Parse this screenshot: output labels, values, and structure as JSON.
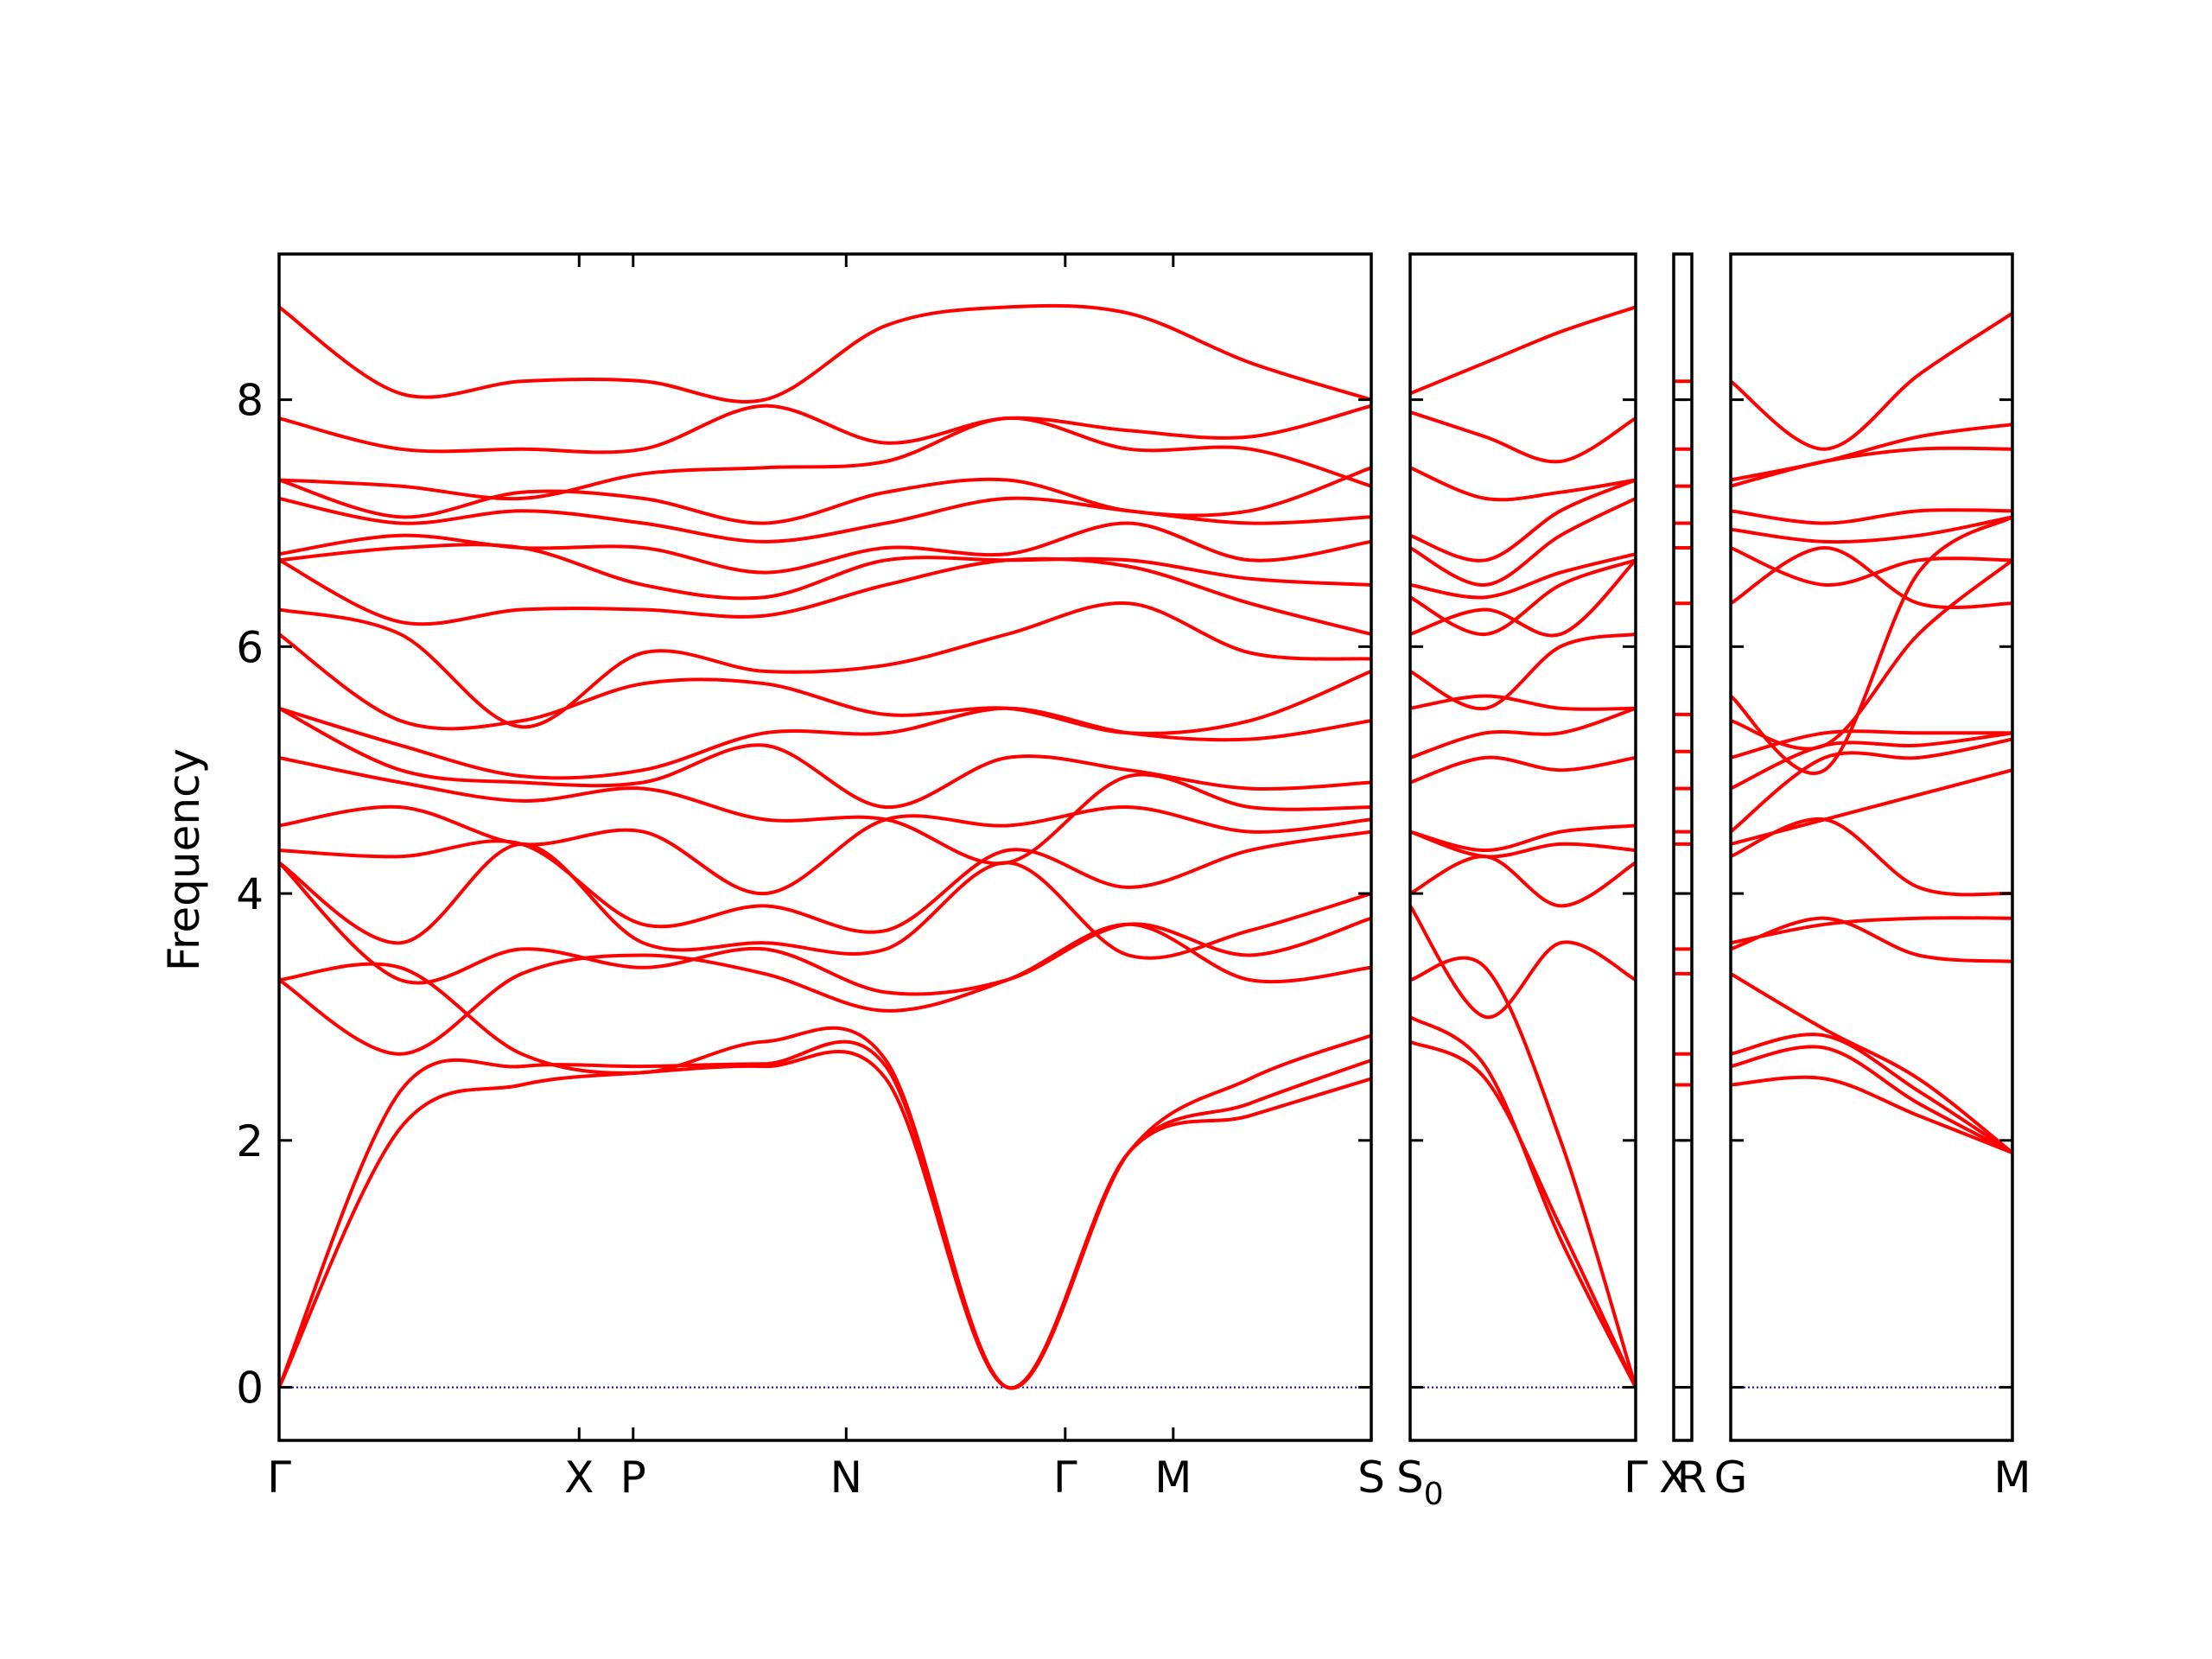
{
  "chart_data": {
    "type": "line",
    "ylabel": "Frequency",
    "ylim": [
      -0.43,
      9.18
    ],
    "yticks": [
      0,
      2,
      4,
      6,
      8
    ],
    "ytick_labels": [
      "0",
      "2",
      "4",
      "6",
      "8"
    ],
    "grid": false,
    "line_color": "#ff0000",
    "zero_line_color": "#0000cc",
    "panels": [
      {
        "segments": [
          {
            "from": "Γ",
            "to": "X",
            "length": 1.0
          },
          {
            "from": "X",
            "to": "P",
            "length": 0.18
          },
          {
            "from": "P",
            "to": "N",
            "length": 0.71
          },
          {
            "from": "N",
            "to": "Γ",
            "length": 0.73
          },
          {
            "from": "Γ",
            "to": "M",
            "length": 0.36
          },
          {
            "from": "M",
            "to": "S",
            "length": 0.66
          }
        ],
        "tick_labels": [
          "Γ",
          "X",
          "P",
          "N",
          "Γ",
          "M",
          "S"
        ],
        "series": [
          {
            "y": [
              0,
              2.1,
              2.45,
              2.55,
              2.6,
              2.5,
              0,
              1.9,
              2.2,
              2.5
            ]
          },
          {
            "y": [
              0,
              2.4,
              2.6,
              2.6,
              2.62,
              2.6,
              0,
              1.9,
              2.3,
              2.65
            ]
          },
          {
            "y": [
              3.3,
              3.4,
              2.7,
              2.55,
              2.8,
              2.65,
              0,
              1.9,
              2.5,
              2.85
            ]
          },
          {
            "y": [
              3.3,
              2.7,
              3.35,
              3.5,
              3.35,
              3.05,
              3.3,
              3.75,
              3.3,
              3.4
            ]
          },
          {
            "y": [
              4.25,
              3.3,
              3.55,
              3.4,
              3.55,
              3.2,
              3.3,
              3.75,
              3.5,
              3.8
            ]
          },
          {
            "y": [
              4.25,
              3.6,
              4.4,
              3.6,
              3.6,
              3.55,
              4.25,
              3.5,
              3.7,
              4.0
            ]
          },
          {
            "y": [
              4.35,
              4.3,
              4.4,
              3.75,
              3.9,
              3.7,
              4.35,
              4.05,
              4.35,
              4.5
            ]
          },
          {
            "y": [
              4.55,
              4.7,
              4.4,
              4.5,
              4.0,
              4.6,
              4.55,
              4.7,
              4.5,
              4.6
            ]
          },
          {
            "y": [
              5.1,
              4.9,
              4.75,
              4.85,
              4.6,
              4.6,
              4.25,
              4.95,
              4.7,
              4.7
            ]
          },
          {
            "y": [
              5.5,
              5.0,
              4.9,
              4.9,
              5.2,
              4.7,
              5.1,
              5.0,
              4.85,
              4.9
            ]
          },
          {
            "y": [
              5.5,
              5.2,
              4.95,
              5.0,
              5.3,
              5.3,
              5.5,
              5.3,
              5.25,
              5.4
            ]
          },
          {
            "y": [
              6.1,
              5.4,
              5.4,
              5.7,
              5.7,
              5.45,
              5.5,
              5.3,
              5.4,
              5.8
            ]
          },
          {
            "y": [
              6.3,
              6.1,
              5.35,
              5.95,
              5.8,
              5.85,
              6.1,
              6.35,
              5.95,
              5.9
            ]
          },
          {
            "y": [
              6.7,
              6.2,
              6.3,
              6.3,
              6.25,
              6.5,
              6.7,
              6.65,
              6.35,
              6.1
            ]
          },
          {
            "y": [
              6.7,
              6.8,
              6.8,
              6.5,
              6.4,
              6.7,
              6.7,
              6.7,
              6.55,
              6.5
            ]
          },
          {
            "y": [
              6.75,
              6.9,
              6.8,
              6.8,
              6.6,
              6.8,
              6.75,
              7.0,
              6.7,
              6.85
            ]
          },
          {
            "y": [
              7.2,
              7.0,
              7.1,
              7.0,
              6.85,
              7.0,
              7.2,
              7.1,
              7.0,
              7.05
            ]
          },
          {
            "y": [
              7.35,
              7.05,
              7.25,
              7.2,
              7.0,
              7.25,
              7.35,
              7.1,
              7.1,
              7.45
            ]
          },
          {
            "y": [
              7.35,
              7.3,
              7.2,
              7.4,
              7.45,
              7.5,
              7.85,
              7.6,
              7.6,
              7.3
            ]
          },
          {
            "y": [
              7.85,
              7.6,
              7.6,
              7.6,
              7.95,
              7.65,
              7.85,
              7.75,
              7.7,
              7.95
            ]
          },
          {
            "y": [
              8.75,
              8.05,
              8.15,
              8.15,
              8.0,
              8.6,
              8.75,
              8.7,
              8.3,
              8.0
            ]
          }
        ]
      },
      {
        "segments": [
          {
            "from": "S0",
            "to": "Γ",
            "length": 1.0
          }
        ],
        "tick_labels": [
          "S0",
          "Γ"
        ],
        "series": [
          {
            "y": [
              2.8,
              2.5,
              1.3,
              0
            ]
          },
          {
            "y": [
              3.0,
              2.6,
              1.2,
              0
            ]
          },
          {
            "y": [
              3.3,
              3.4,
              2.0,
              0
            ]
          },
          {
            "y": [
              3.9,
              3.0,
              3.6,
              3.3
            ]
          },
          {
            "y": [
              4.0,
              4.3,
              3.9,
              4.25
            ]
          },
          {
            "y": [
              4.5,
              4.3,
              4.4,
              4.35
            ]
          },
          {
            "y": [
              4.5,
              4.35,
              4.5,
              4.55
            ]
          },
          {
            "y": [
              4.9,
              5.1,
              5.0,
              5.1
            ]
          },
          {
            "y": [
              5.1,
              5.3,
              5.3,
              5.5
            ]
          },
          {
            "y": [
              5.5,
              5.6,
              5.5,
              5.5
            ]
          },
          {
            "y": [
              5.8,
              5.5,
              6.0,
              6.1
            ]
          },
          {
            "y": [
              6.1,
              6.3,
              6.1,
              6.7
            ]
          },
          {
            "y": [
              6.4,
              6.1,
              6.5,
              6.7
            ]
          },
          {
            "y": [
              6.5,
              6.4,
              6.6,
              6.75
            ]
          },
          {
            "y": [
              6.8,
              6.5,
              6.9,
              7.2
            ]
          },
          {
            "y": [
              6.9,
              6.7,
              7.1,
              7.35
            ]
          },
          {
            "y": [
              7.45,
              7.2,
              7.25,
              7.35
            ]
          },
          {
            "y": [
              7.9,
              7.7,
              7.5,
              7.85
            ]
          },
          {
            "y": [
              8.05,
              8.3,
              8.55,
              8.75
            ]
          }
        ]
      },
      {
        "segments": [
          {
            "from": "X",
            "to": "R",
            "length": 1.0
          }
        ],
        "tick_labels": [
          "X",
          "R"
        ],
        "series": [
          {
            "y": [
              2.45,
              2.45
            ]
          },
          {
            "y": [
              2.7,
              2.7
            ]
          },
          {
            "y": [
              3.35,
              3.35
            ]
          },
          {
            "y": [
              3.55,
              3.55
            ]
          },
          {
            "y": [
              4.4,
              4.4
            ]
          },
          {
            "y": [
              4.5,
              4.5
            ]
          },
          {
            "y": [
              4.85,
              4.85
            ]
          },
          {
            "y": [
              5.15,
              5.15
            ]
          },
          {
            "y": [
              5.45,
              5.45
            ]
          },
          {
            "y": [
              6.35,
              6.35
            ]
          },
          {
            "y": [
              6.8,
              6.8
            ]
          },
          {
            "y": [
              7.0,
              7.0
            ]
          },
          {
            "y": [
              7.3,
              7.3
            ]
          },
          {
            "y": [
              7.6,
              7.6
            ]
          },
          {
            "y": [
              8.15,
              8.15
            ]
          }
        ]
      },
      {
        "segments": [
          {
            "from": "G",
            "to": "M",
            "length": 1.0
          }
        ],
        "tick_labels": [
          "G",
          "M"
        ],
        "series": [
          {
            "y": [
              2.45,
              2.5,
              2.2,
              1.9
            ]
          },
          {
            "y": [
              2.6,
              2.75,
              2.3,
              1.9
            ]
          },
          {
            "y": [
              2.7,
              2.85,
              2.4,
              1.9
            ]
          },
          {
            "y": [
              3.35,
              2.9,
              2.5,
              1.9
            ]
          },
          {
            "y": [
              3.55,
              3.8,
              3.5,
              3.45
            ]
          },
          {
            "y": [
              3.6,
              3.75,
              3.8,
              3.8
            ]
          },
          {
            "y": [
              4.3,
              4.6,
              4.05,
              4.0
            ]
          },
          {
            "y": [
              4.4,
              4.6,
              4.8,
              5.0
            ]
          },
          {
            "y": [
              4.5,
              5.1,
              5.1,
              5.25
            ]
          },
          {
            "y": [
              4.85,
              5.2,
              5.2,
              5.3
            ]
          },
          {
            "y": [
              5.1,
              5.3,
              5.3,
              5.3
            ]
          },
          {
            "y": [
              5.4,
              5.2,
              6.1,
              6.7
            ]
          },
          {
            "y": [
              5.6,
              5.0,
              6.6,
              7.05
            ]
          },
          {
            "y": [
              6.35,
              6.8,
              6.35,
              6.35
            ]
          },
          {
            "y": [
              6.8,
              6.5,
              6.7,
              6.7
            ]
          },
          {
            "y": [
              6.95,
              6.85,
              6.9,
              7.05
            ]
          },
          {
            "y": [
              7.1,
              7.0,
              7.1,
              7.1
            ]
          },
          {
            "y": [
              7.3,
              7.5,
              7.6,
              7.6
            ]
          },
          {
            "y": [
              7.35,
              7.5,
              7.7,
              7.8
            ]
          },
          {
            "y": [
              8.15,
              7.6,
              8.2,
              8.7
            ]
          }
        ]
      }
    ]
  }
}
